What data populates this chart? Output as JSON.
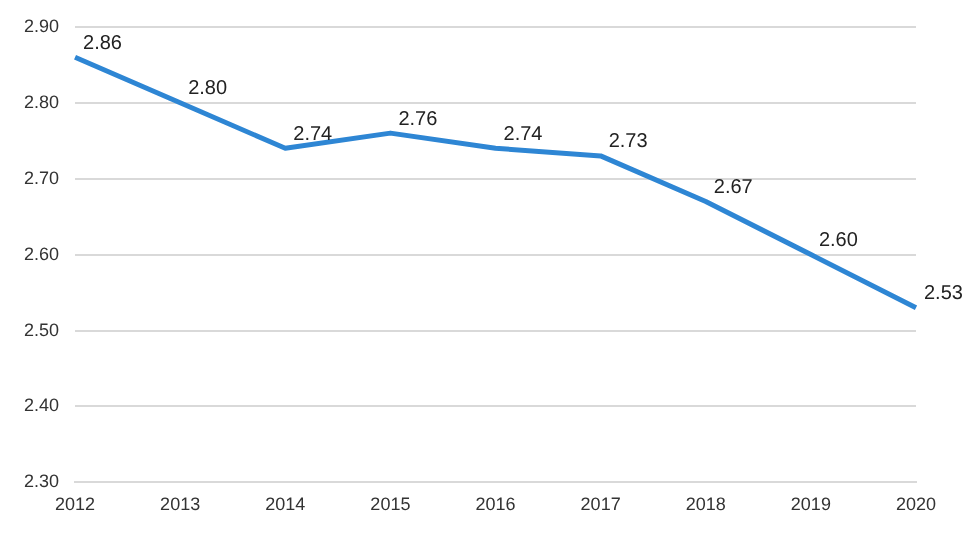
{
  "chart_data": {
    "type": "line",
    "categories": [
      "2012",
      "2013",
      "2014",
      "2015",
      "2016",
      "2017",
      "2018",
      "2019",
      "2020"
    ],
    "series": [
      {
        "color": "#2e86d4",
        "values": [
          2.86,
          2.8,
          2.74,
          2.76,
          2.74,
          2.73,
          2.67,
          2.6,
          2.53
        ],
        "value_labels": [
          "2.86",
          "2.80",
          "2.74",
          "2.76",
          "2.74",
          "2.73",
          "2.67",
          "2.60",
          "2.53"
        ]
      }
    ],
    "ylim": [
      2.3,
      2.9
    ],
    "yticks": [
      {
        "value": 2.3,
        "label": "2.30"
      },
      {
        "value": 2.4,
        "label": "2.40"
      },
      {
        "value": 2.5,
        "label": "2.50"
      },
      {
        "value": 2.6,
        "label": "2.60"
      },
      {
        "value": 2.7,
        "label": "2.70"
      },
      {
        "value": 2.8,
        "label": "2.80"
      },
      {
        "value": 2.9,
        "label": "2.90"
      }
    ],
    "grid": "y",
    "legend": false,
    "marker": "none",
    "line_style": "solid"
  }
}
